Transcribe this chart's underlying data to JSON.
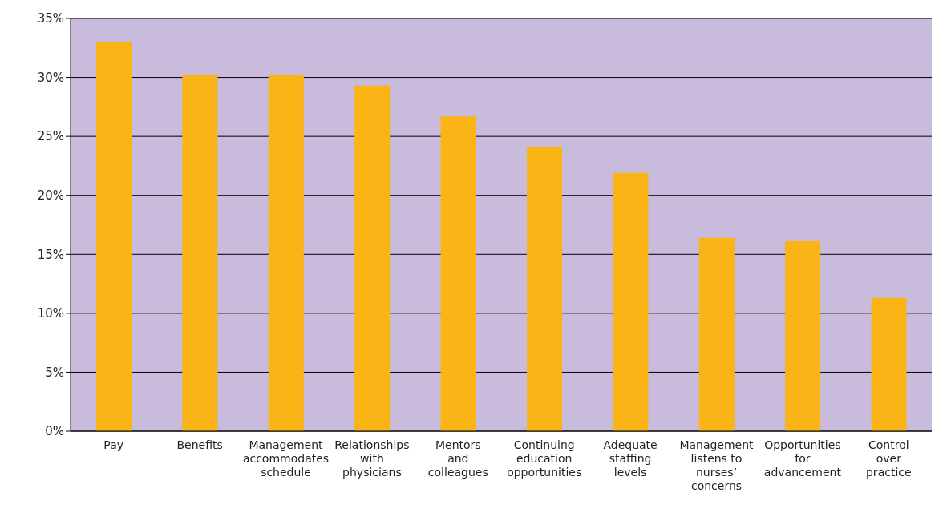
{
  "chart_data": {
    "type": "bar",
    "categories": [
      "Pay",
      "Benefits",
      "Management accommodates schedule",
      "Relationships with physicians",
      "Mentors and colleagues",
      "Continuing education opportunities",
      "Adequate staffing levels",
      "Management listens to nurses’ concerns",
      "Opportunities for advancement",
      "Control over practice"
    ],
    "values": [
      33.0,
      30.2,
      30.2,
      29.3,
      26.7,
      24.1,
      21.9,
      16.4,
      16.1,
      11.3
    ],
    "color": "#fbb416",
    "ylim": [
      0,
      35
    ],
    "yticks": [
      {
        "value": 0,
        "label": "0%"
      },
      {
        "value": 5,
        "label": "5%"
      },
      {
        "value": 10,
        "label": "10%"
      },
      {
        "value": 15,
        "label": "15%"
      },
      {
        "value": 20,
        "label": "20%"
      },
      {
        "value": 25,
        "label": "25%"
      },
      {
        "value": 30,
        "label": "30%"
      },
      {
        "value": 35,
        "label": "35%"
      }
    ],
    "grid": "y",
    "legend": false
  }
}
